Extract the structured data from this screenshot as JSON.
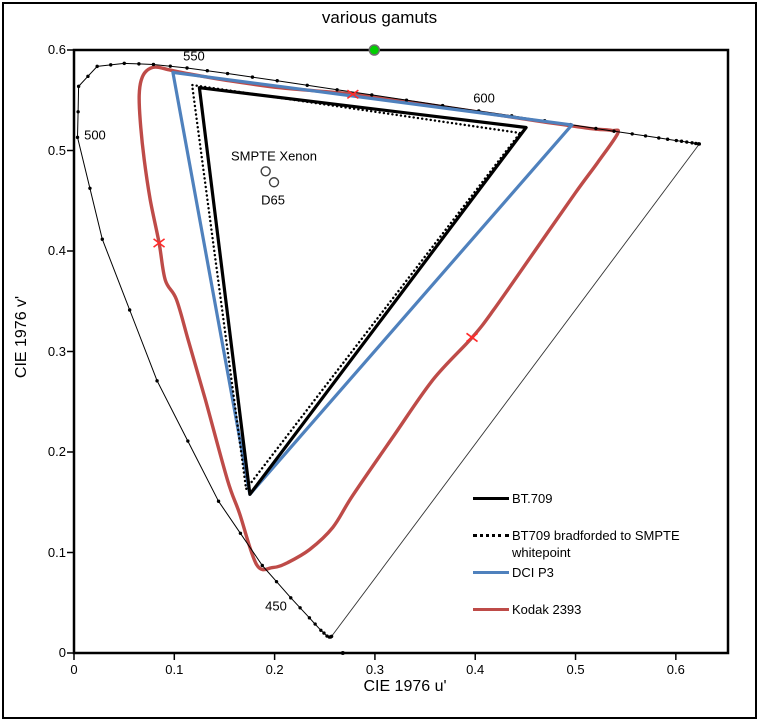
{
  "frame": {
    "bg": "#ffffff",
    "border_color": "#000000"
  },
  "chart_data": {
    "type": "line",
    "title": "various gamuts",
    "xlabel": "CIE 1976 u'",
    "ylabel": "CIE 1976 v'",
    "xlim": [
      0,
      0.652
    ],
    "ylim": [
      0,
      0.6
    ],
    "grid": false,
    "x_ticks": {
      "values": [
        0,
        0.1,
        0.2,
        0.3,
        0.4,
        0.5,
        0.6
      ],
      "labels": [
        "0",
        "0.1",
        "0.2",
        "0.3",
        "0.4",
        "0.5",
        "0.6"
      ]
    },
    "y_ticks": {
      "values": [
        0,
        0.1,
        0.2,
        0.3,
        0.4,
        0.5,
        0.6
      ],
      "labels": [
        "0",
        "0.1",
        "0.2",
        "0.3",
        "0.4",
        "0.5",
        "0.6"
      ]
    },
    "series": [
      {
        "name": "purple-boundary",
        "label": "",
        "color": "#333333",
        "width": 0.9,
        "closed": false,
        "points": [
          [
            0.6234,
            0.5065
          ],
          [
            0.2568,
            0.0166
          ]
        ]
      },
      {
        "name": "kodak-2393",
        "label": "Kodak 2393",
        "color": "#BE4B48",
        "width": 3.4,
        "closed": true,
        "smooth": true,
        "points": [
          [
            0.081,
            0.583
          ],
          [
            0.096,
            0.58
          ],
          [
            0.116,
            0.576
          ],
          [
            0.151,
            0.57
          ],
          [
            0.2,
            0.563
          ],
          [
            0.239,
            0.5595
          ],
          [
            0.278,
            0.556
          ],
          [
            0.345,
            0.547
          ],
          [
            0.405,
            0.538
          ],
          [
            0.465,
            0.529
          ],
          [
            0.514,
            0.522
          ],
          [
            0.536,
            0.52
          ],
          [
            0.542,
            0.517
          ],
          [
            0.522,
            0.488
          ],
          [
            0.5,
            0.458
          ],
          [
            0.458,
            0.398
          ],
          [
            0.418,
            0.341
          ],
          [
            0.397,
            0.314
          ],
          [
            0.358,
            0.272
          ],
          [
            0.318,
            0.215
          ],
          [
            0.278,
            0.157
          ],
          [
            0.258,
            0.125
          ],
          [
            0.235,
            0.103
          ],
          [
            0.213,
            0.09
          ],
          [
            0.198,
            0.085
          ],
          [
            0.182,
            0.088
          ],
          [
            0.165,
            0.139
          ],
          [
            0.153,
            0.172
          ],
          [
            0.131,
            0.252
          ],
          [
            0.114,
            0.311
          ],
          [
            0.102,
            0.352
          ],
          [
            0.091,
            0.371
          ],
          [
            0.0848,
            0.408
          ],
          [
            0.076,
            0.451
          ],
          [
            0.07,
            0.491
          ],
          [
            0.066,
            0.53
          ],
          [
            0.065,
            0.555
          ],
          [
            0.067,
            0.57
          ],
          [
            0.072,
            0.579
          ]
        ]
      },
      {
        "name": "spectral-locus",
        "label": "",
        "color": "#000000",
        "width": 1,
        "closed": false,
        "marker_r": 1.7,
        "points": [
          [
            0.2568,
            0.0166
          ],
          [
            0.256,
            0.0161
          ],
          [
            0.2557,
            0.0159
          ],
          [
            0.2545,
            0.0159
          ],
          [
            0.2522,
            0.0169
          ],
          [
            0.2492,
            0.0198
          ],
          [
            0.2461,
            0.0226
          ],
          [
            0.2404,
            0.0288
          ],
          [
            0.2347,
            0.035
          ],
          [
            0.2254,
            0.045
          ],
          [
            0.2161,
            0.0549
          ],
          [
            0.2019,
            0.071
          ],
          [
            0.1877,
            0.0871
          ],
          [
            0.1659,
            0.1191
          ],
          [
            0.1441,
            0.151
          ],
          [
            0.1135,
            0.2109
          ],
          [
            0.0828,
            0.2708
          ],
          [
            0.0555,
            0.3413
          ],
          [
            0.0282,
            0.4117
          ],
          [
            0.0159,
            0.4624
          ],
          [
            0.0035,
            0.5131
          ],
          [
            0.0041,
            0.5385
          ],
          [
            0.0046,
            0.5638
          ],
          [
            0.0139,
            0.5738
          ],
          [
            0.0231,
            0.5837
          ],
          [
            0.0366,
            0.5852
          ],
          [
            0.0501,
            0.5867
          ],
          [
            0.0647,
            0.5862
          ],
          [
            0.0792,
            0.5856
          ],
          [
            0.096,
            0.5839
          ],
          [
            0.1127,
            0.5821
          ],
          [
            0.1329,
            0.5794
          ],
          [
            0.1531,
            0.5766
          ],
          [
            0.1779,
            0.573
          ],
          [
            0.2026,
            0.5694
          ],
          [
            0.2325,
            0.5649
          ],
          [
            0.2623,
            0.5604
          ],
          [
            0.2969,
            0.5553
          ],
          [
            0.3315,
            0.5501
          ],
          [
            0.3675,
            0.5447
          ],
          [
            0.4035,
            0.5393
          ],
          [
            0.4364,
            0.5345
          ],
          [
            0.4692,
            0.5296
          ],
          [
            0.4948,
            0.5258
          ],
          [
            0.5203,
            0.5219
          ],
          [
            0.5384,
            0.5192
          ],
          [
            0.5565,
            0.5165
          ],
          [
            0.5698,
            0.5145
          ],
          [
            0.583,
            0.5125
          ],
          [
            0.5918,
            0.5112
          ],
          [
            0.6005,
            0.5099
          ],
          [
            0.6057,
            0.5092
          ],
          [
            0.6109,
            0.5084
          ],
          [
            0.6162,
            0.5076
          ],
          [
            0.6199,
            0.507
          ],
          [
            0.6226,
            0.5066
          ],
          [
            0.6234,
            0.5065
          ]
        ]
      },
      {
        "name": "dci-p3",
        "label": "DCI P3",
        "color": "#4F81BD",
        "width": 3.2,
        "closed": true,
        "points": [
          [
            0.4964,
            0.5255
          ],
          [
            0.0986,
            0.5777
          ],
          [
            0.1754,
            0.1579
          ]
        ]
      },
      {
        "name": "bt709-bradford",
        "label": "BT709 bradforded to SMPTE whitepoint",
        "color": "#000000",
        "width": 2.4,
        "dash": "0.1 4.2",
        "closed": true,
        "points": [
          [
            0.4447,
            0.5174
          ],
          [
            0.1177,
            0.5652
          ],
          [
            0.1716,
            0.1631
          ]
        ]
      },
      {
        "name": "bt709",
        "label": "BT.709",
        "color": "#000000",
        "width": 3.2,
        "closed": true,
        "points": [
          [
            0.4507,
            0.5229
          ],
          [
            0.125,
            0.5625
          ],
          [
            0.1754,
            0.1579
          ]
        ]
      }
    ],
    "markers": [
      {
        "name": "green-dot",
        "shape": "circle",
        "u": 0.2994,
        "v": 0.6,
        "r": 5,
        "fill": "#00CF00",
        "stroke": "#6f6f6f"
      },
      {
        "name": "whitepoint-smpte-xenon",
        "shape": "open-circle",
        "u": 0.1911,
        "v": 0.4793,
        "r": 4.5,
        "stroke": "#404040"
      },
      {
        "name": "whitepoint-d65",
        "shape": "open-circle",
        "u": 0.1994,
        "v": 0.4684,
        "r": 4.5,
        "stroke": "#404040"
      },
      {
        "name": "x-marker-top",
        "shape": "x",
        "u": 0.278,
        "v": 0.556,
        "r": 5.5,
        "stroke": "#FF2A2A"
      },
      {
        "name": "x-marker-left",
        "shape": "x",
        "u": 0.0848,
        "v": 0.408,
        "r": 5.5,
        "stroke": "#FF2A2A"
      },
      {
        "name": "x-marker-right",
        "shape": "x",
        "u": 0.3968,
        "v": 0.314,
        "r": 5.5,
        "stroke": "#FF2A2A"
      },
      {
        "name": "baseline-dot",
        "shape": "dot",
        "u": 0.268,
        "v": 0.0,
        "r": 2,
        "fill": "#000000"
      }
    ],
    "annotations": [
      {
        "name": "wavelength-550",
        "text": "550",
        "u": 0.1196,
        "v": 0.594
      },
      {
        "name": "wavelength-500",
        "text": "500",
        "u": 0.0209,
        "v": 0.5154
      },
      {
        "name": "wavelength-600",
        "text": "600",
        "u": 0.4088,
        "v": 0.5522
      },
      {
        "name": "wavelength-450",
        "text": "450",
        "u": 0.2014,
        "v": 0.0468
      },
      {
        "name": "whitepoint-label-smpte",
        "text": "SMPTE Xenon",
        "u": 0.1994,
        "v": 0.4945
      },
      {
        "name": "whitepoint-label-d65",
        "text": "D65",
        "u": 0.1984,
        "v": 0.4507
      }
    ],
    "legend": {
      "position": "inside-bottom-right",
      "items": [
        {
          "label": "BT.709",
          "color": "#000000",
          "style": "solid"
        },
        {
          "label": "BT709 bradforded to SMPTE whitepoint",
          "color": "#000000",
          "style": "dotted"
        },
        {
          "label": "DCI P3",
          "color": "#4F81BD",
          "style": "solid"
        },
        {
          "label": "Kodak 2393",
          "color": "#BE4B48",
          "style": "solid"
        }
      ]
    }
  }
}
